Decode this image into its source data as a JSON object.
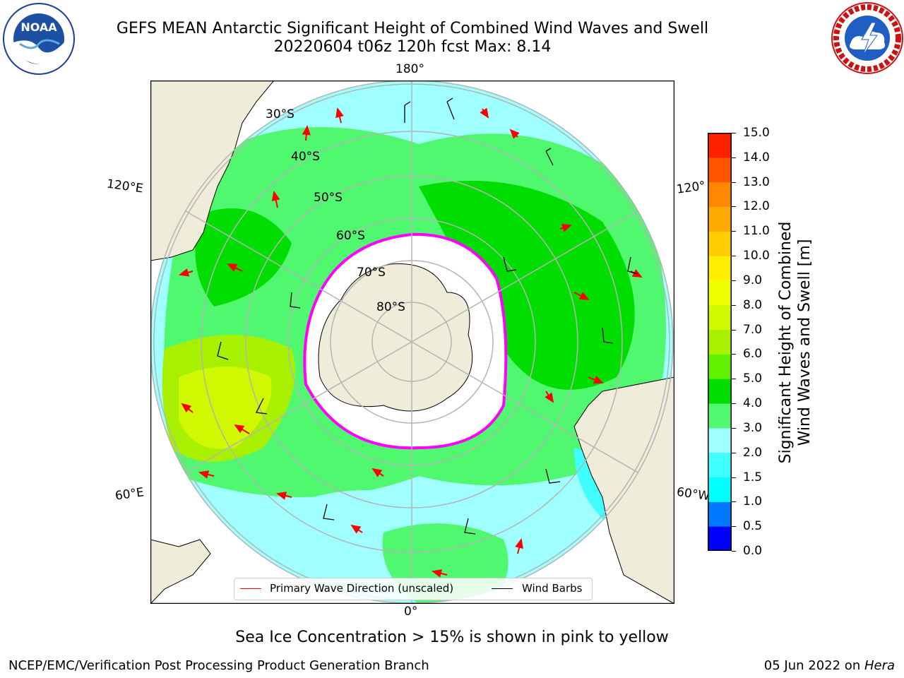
{
  "header": {
    "title_line1": "GEFS MEAN Antarctic Significant Height of Combined Wind Waves and Swell",
    "title_line2": "20220604 t06z 120h fcst   Max: 8.14"
  },
  "map": {
    "longitude_labels": {
      "top": "180°",
      "bottom": "0°",
      "left_upper": "120°E",
      "left_lower": "60°E",
      "right_upper": "120°",
      "right_lower": "60°W"
    },
    "latitude_labels": [
      "30°S",
      "40°S",
      "50°S",
      "60°S",
      "70°S",
      "80°S"
    ],
    "colors": {
      "land": "#efecd9",
      "coastline": "#000000",
      "grid": "#b4b4b4",
      "wave_arrow": "#ff0000",
      "wind_barb": "#000000",
      "sea_ice_edge": "#ff00ff"
    }
  },
  "legend": {
    "primary_wave": "Primary Wave Direction (unscaled)",
    "wind_barbs": "Wind Barbs"
  },
  "colorbar": {
    "title_line1": "Significant Height of Combined",
    "title_line2": "Wind Waves and Swell [m]",
    "ticks": [
      "15.0",
      "14.0",
      "13.0",
      "12.0",
      "11.0",
      "10.0",
      "9.0",
      "8.0",
      "7.0",
      "6.0",
      "5.0",
      "4.0",
      "3.0",
      "2.0",
      "1.5",
      "1.0",
      "0.5",
      "0.0"
    ],
    "colors_bottom_to_top": [
      "#0000ff",
      "#0078ff",
      "#00ffff",
      "#40ffff",
      "#a0ffff",
      "#50f870",
      "#00dd00",
      "#60f000",
      "#a8f000",
      "#d0f800",
      "#f0ff00",
      "#ffee00",
      "#ffcc00",
      "#ffaa00",
      "#ff8800",
      "#ff5500",
      "#ff2200"
    ]
  },
  "notes": {
    "sea_ice": "Sea Ice Concentration > 15% is shown in pink to yellow"
  },
  "footer": {
    "left": "NCEP/EMC/Verification Post Processing Product Generation Branch",
    "right_prefix": "05 Jun 2022 on ",
    "right_host": "Hera"
  }
}
